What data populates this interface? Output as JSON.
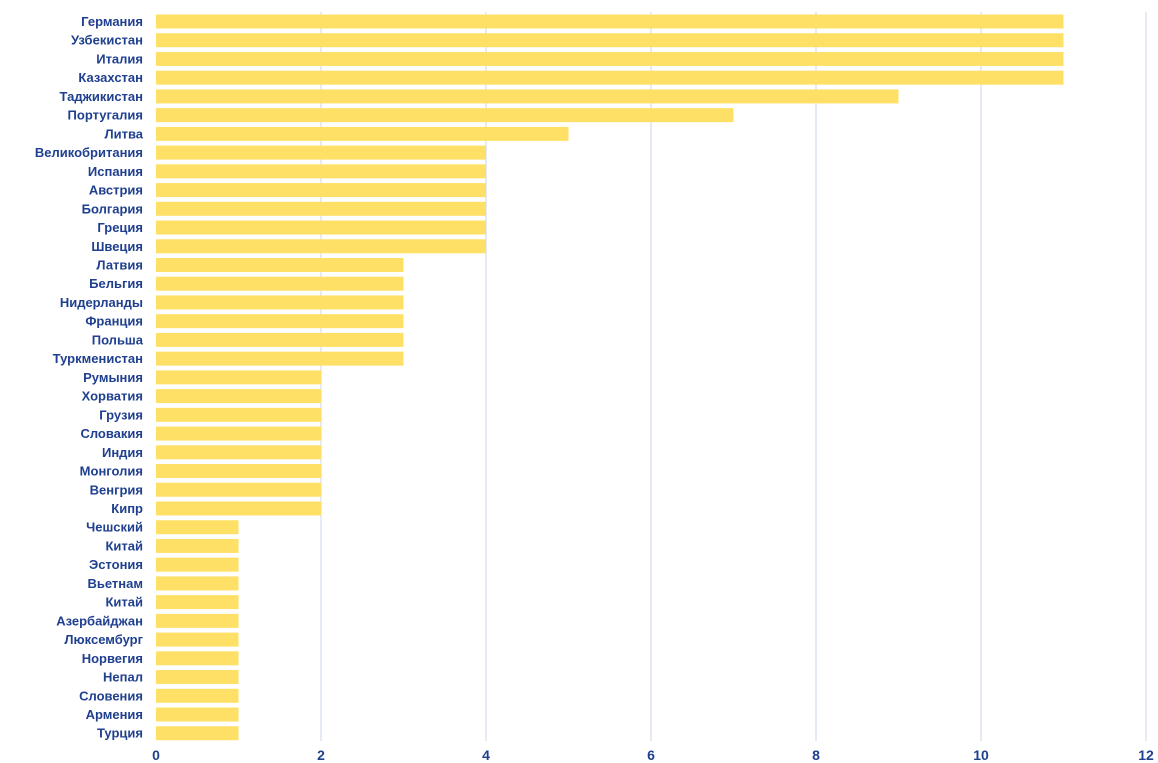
{
  "chart_data": {
    "type": "bar",
    "orientation": "horizontal",
    "title": "",
    "xlabel": "",
    "ylabel": "",
    "xlim": [
      0,
      12
    ],
    "x_ticks": [
      0,
      2,
      4,
      6,
      8,
      10,
      12
    ],
    "grid": "vertical",
    "legend": "none",
    "bar_color": "#ffe066",
    "label_color": "#1f3f8f",
    "grid_color": "#c9d6ee",
    "categories": [
      "Германия",
      "Узбекистан",
      "Италия",
      "Казахстан",
      "Таджикистан",
      "Португалия",
      "Литва",
      "Великобритания",
      "Испания",
      "Австрия",
      "Болгария",
      "Греция",
      "Швеция",
      "Латвия",
      "Бельгия",
      "Нидерланды",
      "Франция",
      "Польша",
      "Туркменистан",
      "Румыния",
      "Хорватия",
      "Грузия",
      "Словакия",
      "Индия",
      "Монголия",
      "Венгрия",
      "Кипр",
      "Чешский",
      "Китай",
      "Эстония",
      "Вьетнам",
      "Китай",
      "Азербайджан",
      "Люксембург",
      "Норвегия",
      "Непал",
      "Словения",
      "Армения",
      "Турция"
    ],
    "values": [
      11,
      11,
      11,
      11,
      9,
      7,
      5,
      4,
      4,
      4,
      4,
      4,
      4,
      3,
      3,
      3,
      3,
      3,
      3,
      2,
      2,
      2,
      2,
      2,
      2,
      2,
      2,
      1,
      1,
      1,
      1,
      1,
      1,
      1,
      1,
      1,
      1,
      1,
      1
    ]
  }
}
